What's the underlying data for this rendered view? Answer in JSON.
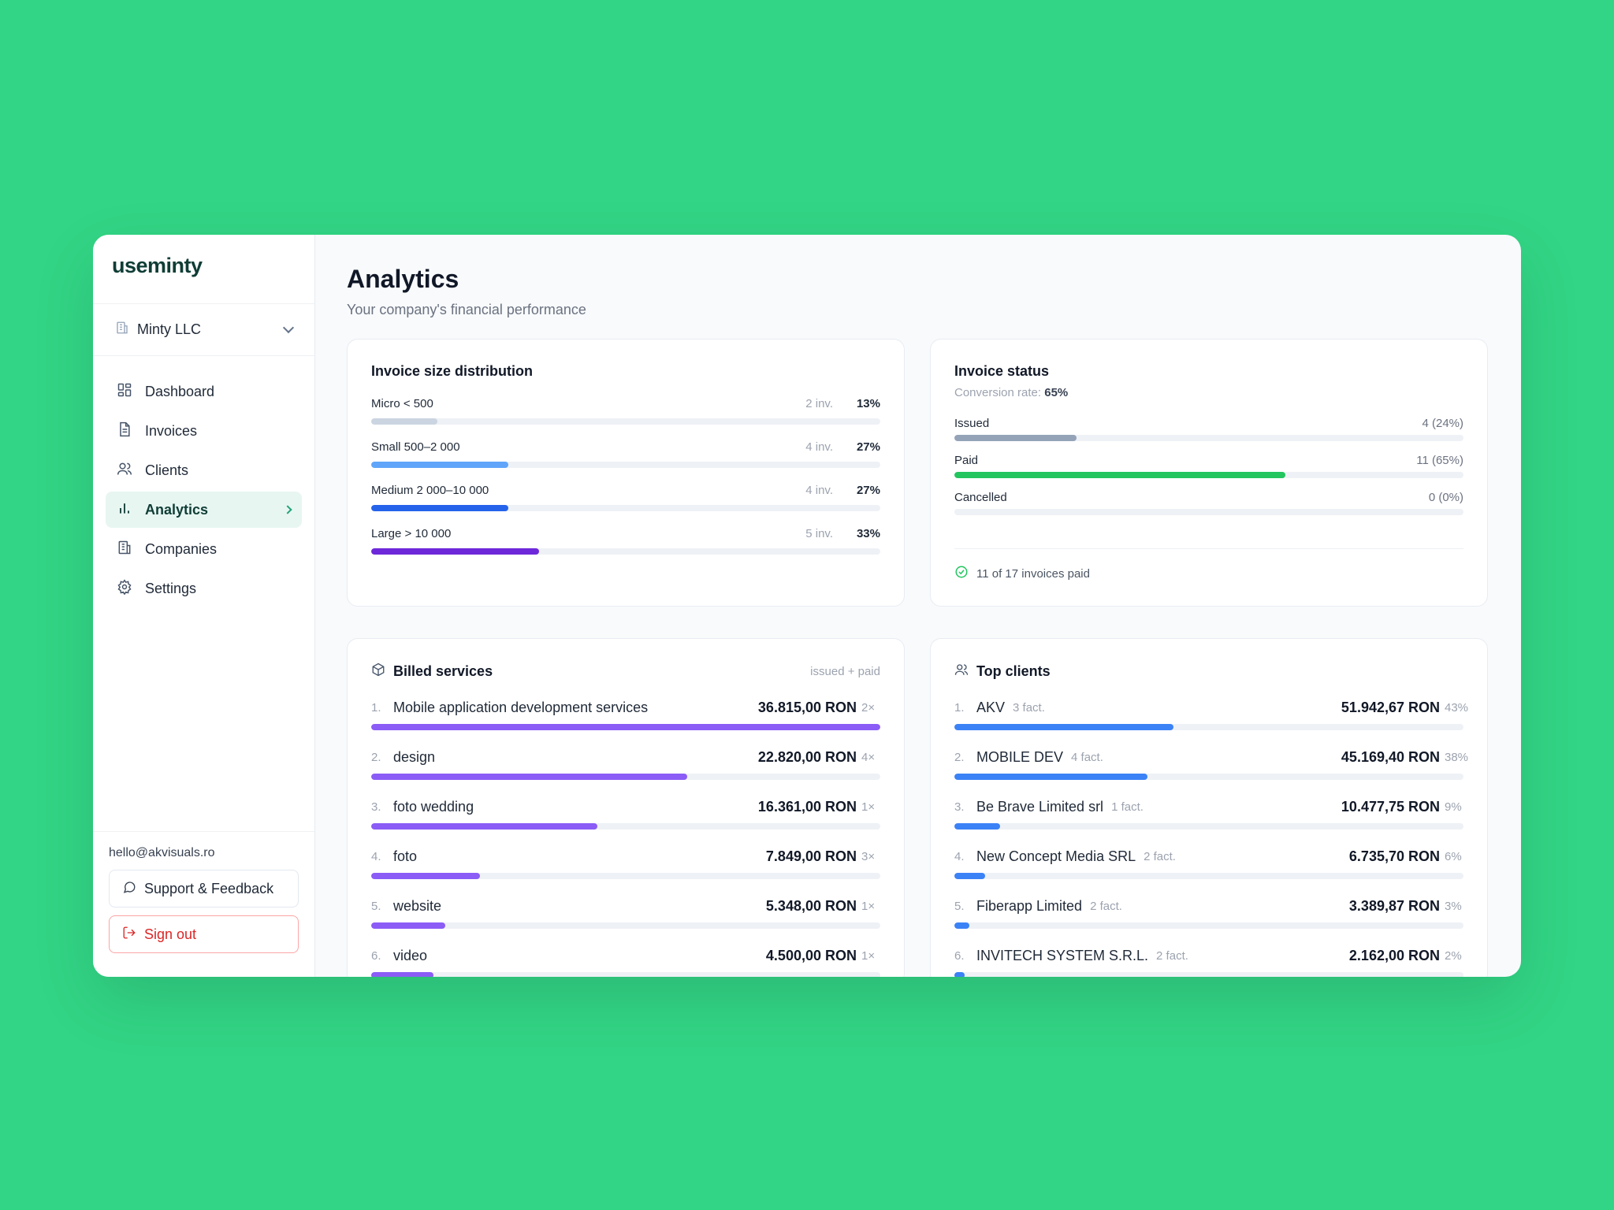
{
  "brand": {
    "logo_text": "useminty"
  },
  "company": {
    "name": "Minty LLC"
  },
  "sidebar": {
    "items": [
      {
        "label": "Dashboard",
        "icon": "grid-icon"
      },
      {
        "label": "Invoices",
        "icon": "document-icon"
      },
      {
        "label": "Clients",
        "icon": "users-icon"
      },
      {
        "label": "Analytics",
        "icon": "bar-chart-icon",
        "active": true
      },
      {
        "label": "Companies",
        "icon": "building-icon"
      },
      {
        "label": "Settings",
        "icon": "gear-icon"
      }
    ],
    "email": "hello@akvisuals.ro",
    "support_label": "Support & Feedback",
    "signout_label": "Sign out"
  },
  "page": {
    "title": "Analytics",
    "subtitle": "Your company's financial performance"
  },
  "distribution": {
    "title": "Invoice size distribution",
    "rows": [
      {
        "label": "Micro < 500",
        "count": "2 inv.",
        "pct": "13%",
        "fill": 0.13,
        "color": "#cbd5e1"
      },
      {
        "label": "Small 500–2 000",
        "count": "4 inv.",
        "pct": "27%",
        "fill": 0.27,
        "color": "#60a5fa"
      },
      {
        "label": "Medium 2 000–10 000",
        "count": "4 inv.",
        "pct": "27%",
        "fill": 0.27,
        "color": "#2563eb"
      },
      {
        "label": "Large > 10 000",
        "count": "5 inv.",
        "pct": "33%",
        "fill": 0.33,
        "color": "#6d28d9"
      }
    ]
  },
  "status": {
    "title": "Invoice status",
    "conversion_label": "Conversion rate:",
    "conversion_value": "65%",
    "rows": [
      {
        "label": "Issued",
        "value": "4 (24%)",
        "fill": 0.24,
        "color": "#94a3b8"
      },
      {
        "label": "Paid",
        "value": "11 (65%)",
        "fill": 0.65,
        "color": "#22c55e"
      },
      {
        "label": "Cancelled",
        "value": "0 (0%)",
        "fill": 0,
        "color": "#94a3b8"
      }
    ],
    "footer": "11 of 17 invoices paid"
  },
  "services": {
    "title": "Billed services",
    "note": "issued + paid",
    "rows": [
      {
        "num": "1.",
        "name": "Mobile application development services",
        "amount": "36.815,00 RON",
        "times": "2×",
        "fill": 1.0
      },
      {
        "num": "2.",
        "name": "design",
        "amount": "22.820,00 RON",
        "times": "4×",
        "fill": 0.62
      },
      {
        "num": "3.",
        "name": "foto wedding",
        "amount": "16.361,00 RON",
        "times": "1×",
        "fill": 0.445
      },
      {
        "num": "4.",
        "name": "foto",
        "amount": "7.849,00 RON",
        "times": "3×",
        "fill": 0.213
      },
      {
        "num": "5.",
        "name": "website",
        "amount": "5.348,00 RON",
        "times": "1×",
        "fill": 0.145
      },
      {
        "num": "6.",
        "name": "video",
        "amount": "4.500,00 RON",
        "times": "1×",
        "fill": 0.122
      }
    ],
    "bar_color": "#8b5cf6"
  },
  "clients": {
    "title": "Top clients",
    "rows": [
      {
        "num": "1.",
        "name": "AKV",
        "meta": "3 fact.",
        "amount": "51.942,67 RON",
        "pct": "43%",
        "fill": 0.43
      },
      {
        "num": "2.",
        "name": "MOBILE DEV",
        "meta": "4 fact.",
        "amount": "45.169,40 RON",
        "pct": "38%",
        "fill": 0.38
      },
      {
        "num": "3.",
        "name": "Be Brave Limited srl",
        "meta": "1 fact.",
        "amount": "10.477,75 RON",
        "pct": "9%",
        "fill": 0.09
      },
      {
        "num": "4.",
        "name": "New Concept Media SRL",
        "meta": "2 fact.",
        "amount": "6.735,70 RON",
        "pct": "6%",
        "fill": 0.06
      },
      {
        "num": "5.",
        "name": "Fiberapp Limited",
        "meta": "2 fact.",
        "amount": "3.389,87 RON",
        "pct": "3%",
        "fill": 0.03
      },
      {
        "num": "6.",
        "name": "INVITECH SYSTEM S.R.L.",
        "meta": "2 fact.",
        "amount": "2.162,00 RON",
        "pct": "2%",
        "fill": 0.02
      }
    ],
    "bar_color": "#3b82f6"
  }
}
